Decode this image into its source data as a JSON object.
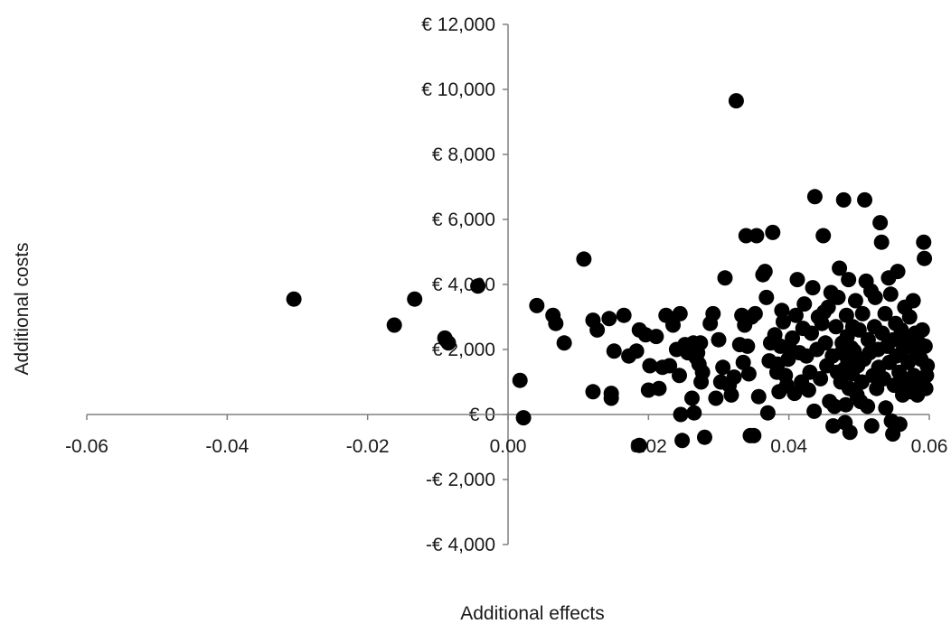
{
  "chart_data": {
    "type": "scatter",
    "title": "",
    "xlabel": "Additional effects",
    "ylabel": "Additional costs",
    "xlim": [
      -0.06,
      0.06
    ],
    "ylim": [
      -4000,
      12000
    ],
    "x_ticks": [
      -0.06,
      -0.04,
      -0.02,
      0.0,
      0.02,
      0.04,
      0.06
    ],
    "x_tick_labels": [
      "-0.06",
      "-0.04",
      "-0.02",
      "0.00",
      "0.02",
      "0.04",
      "0.06"
    ],
    "y_ticks": [
      12000,
      10000,
      8000,
      6000,
      4000,
      2000,
      0,
      -2000,
      -4000
    ],
    "y_tick_labels": [
      "€ 12,000",
      "€ 10,000",
      "€ 8,000",
      "€ 6,000",
      "€ 4,000",
      "€ 2,000",
      "€ 0",
      "-€ 2,000",
      "-€ 4,000"
    ],
    "grid": false,
    "legend": "none",
    "point_color": "#000000",
    "series": [
      {
        "points": [
          [
            -0.0305,
            3550
          ],
          [
            -0.0162,
            2750
          ],
          [
            -0.0133,
            3550
          ],
          [
            -0.009,
            2350
          ],
          [
            -0.0085,
            2200
          ],
          [
            -0.0043,
            3950
          ],
          [
            0.0017,
            1050
          ],
          [
            0.0022,
            -100
          ],
          [
            0.0041,
            3350
          ],
          [
            0.0064,
            3050
          ],
          [
            0.0068,
            2800
          ],
          [
            0.008,
            2200
          ],
          [
            0.0108,
            4780
          ],
          [
            0.0121,
            2900
          ],
          [
            0.0121,
            700
          ],
          [
            0.0127,
            2600
          ],
          [
            0.0144,
            2950
          ],
          [
            0.0147,
            650
          ],
          [
            0.0147,
            500
          ],
          [
            0.0151,
            1950
          ],
          [
            0.0165,
            3050
          ],
          [
            0.0172,
            1800
          ],
          [
            0.0183,
            1950
          ],
          [
            0.0187,
            2600
          ],
          [
            0.0187,
            -950
          ],
          [
            0.0196,
            2450
          ],
          [
            0.02,
            750
          ],
          [
            0.0202,
            1500
          ],
          [
            0.0211,
            2400
          ],
          [
            0.0215,
            800
          ],
          [
            0.022,
            1450
          ],
          [
            0.0225,
            3050
          ],
          [
            0.023,
            1500
          ],
          [
            0.0235,
            2750
          ],
          [
            0.024,
            2000
          ],
          [
            0.0244,
            1200
          ],
          [
            0.0245,
            3100
          ],
          [
            0.0246,
            0
          ],
          [
            0.0248,
            -800
          ],
          [
            0.0252,
            2150
          ],
          [
            0.0256,
            1900
          ],
          [
            0.026,
            2000
          ],
          [
            0.0262,
            500
          ],
          [
            0.0264,
            2200
          ],
          [
            0.0265,
            50
          ],
          [
            0.0268,
            1750
          ],
          [
            0.027,
            1900
          ],
          [
            0.0272,
            1550
          ],
          [
            0.0274,
            2200
          ],
          [
            0.0275,
            1000
          ],
          [
            0.0277,
            1300
          ],
          [
            0.028,
            -700
          ],
          [
            0.0288,
            2800
          ],
          [
            0.0292,
            3100
          ],
          [
            0.0296,
            500
          ],
          [
            0.03,
            2300
          ],
          [
            0.0303,
            1000
          ],
          [
            0.0306,
            1450
          ],
          [
            0.0309,
            4200
          ],
          [
            0.0315,
            900
          ],
          [
            0.0318,
            600
          ],
          [
            0.0322,
            1150
          ],
          [
            0.0325,
            9650
          ],
          [
            0.033,
            2150
          ],
          [
            0.0333,
            3050
          ],
          [
            0.0335,
            1600
          ],
          [
            0.0337,
            2750
          ],
          [
            0.0339,
            5500
          ],
          [
            0.0341,
            2100
          ],
          [
            0.0343,
            1250
          ],
          [
            0.0345,
            -650
          ],
          [
            0.0347,
            3000
          ],
          [
            0.035,
            -650
          ],
          [
            0.0352,
            3100
          ],
          [
            0.0354,
            5500
          ],
          [
            0.0357,
            550
          ],
          [
            0.0363,
            4300
          ],
          [
            0.0366,
            4400
          ],
          [
            0.0368,
            3600
          ],
          [
            0.037,
            50
          ],
          [
            0.0372,
            1650
          ],
          [
            0.0374,
            2200
          ],
          [
            0.0377,
            5600
          ],
          [
            0.038,
            2450
          ],
          [
            0.0383,
            1300
          ],
          [
            0.0384,
            1550
          ],
          [
            0.0386,
            700
          ],
          [
            0.0388,
            2100
          ],
          [
            0.039,
            3200
          ],
          [
            0.0392,
            2850
          ],
          [
            0.0395,
            1200
          ],
          [
            0.0397,
            900
          ],
          [
            0.0399,
            1700
          ],
          [
            0.0402,
            2000
          ],
          [
            0.0405,
            2350
          ],
          [
            0.0408,
            650
          ],
          [
            0.041,
            3050
          ],
          [
            0.0412,
            4150
          ],
          [
            0.0415,
            1900
          ],
          [
            0.0418,
            1000
          ],
          [
            0.042,
            2650
          ],
          [
            0.0422,
            3400
          ],
          [
            0.0425,
            1800
          ],
          [
            0.0428,
            750
          ],
          [
            0.043,
            1300
          ],
          [
            0.0432,
            2500
          ],
          [
            0.0434,
            3900
          ],
          [
            0.0436,
            100
          ],
          [
            0.0437,
            6700
          ],
          [
            0.044,
            2000
          ],
          [
            0.0442,
            3000
          ],
          [
            0.0445,
            1100
          ],
          [
            0.0447,
            2800
          ],
          [
            0.0449,
            5500
          ],
          [
            0.045,
            3150
          ],
          [
            0.0452,
            2200
          ],
          [
            0.0454,
            1500
          ],
          [
            0.0456,
            3300
          ],
          [
            0.0458,
            400
          ],
          [
            0.046,
            3750
          ],
          [
            0.0462,
            1800
          ],
          [
            0.0463,
            -350
          ],
          [
            0.0465,
            250
          ],
          [
            0.0467,
            2700
          ],
          [
            0.0469,
            1300
          ],
          [
            0.047,
            3600
          ],
          [
            0.0472,
            4500
          ],
          [
            0.0474,
            1000
          ],
          [
            0.0475,
            1900
          ],
          [
            0.0476,
            2200
          ],
          [
            0.0478,
            6600
          ],
          [
            0.0479,
            1400
          ],
          [
            0.048,
            -250
          ],
          [
            0.0481,
            300
          ],
          [
            0.0482,
            3050
          ],
          [
            0.0483,
            2400
          ],
          [
            0.0484,
            1650
          ],
          [
            0.0485,
            4150
          ],
          [
            0.0486,
            800
          ],
          [
            0.0487,
            -550
          ],
          [
            0.0489,
            2050
          ],
          [
            0.049,
            1250
          ],
          [
            0.0491,
            2700
          ],
          [
            0.0493,
            1950
          ],
          [
            0.0495,
            3500
          ],
          [
            0.0497,
            600
          ],
          [
            0.0498,
            1500
          ],
          [
            0.05,
            2600
          ],
          [
            0.0502,
            400
          ],
          [
            0.0504,
            1000
          ],
          [
            0.0505,
            3100
          ],
          [
            0.0507,
            1700
          ],
          [
            0.0508,
            6600
          ],
          [
            0.051,
            4100
          ],
          [
            0.0512,
            250
          ],
          [
            0.0513,
            2300
          ],
          [
            0.0515,
            1900
          ],
          [
            0.0517,
            3800
          ],
          [
            0.0518,
            -350
          ],
          [
            0.052,
            1200
          ],
          [
            0.0522,
            2700
          ],
          [
            0.0523,
            3600
          ],
          [
            0.0525,
            800
          ],
          [
            0.0527,
            2000
          ],
          [
            0.0528,
            1450
          ],
          [
            0.053,
            5900
          ],
          [
            0.0532,
            5300
          ],
          [
            0.0533,
            2500
          ],
          [
            0.0535,
            1100
          ],
          [
            0.0537,
            3100
          ],
          [
            0.0538,
            200
          ],
          [
            0.054,
            2100
          ],
          [
            0.0542,
            4200
          ],
          [
            0.0543,
            1600
          ],
          [
            0.0545,
            3700
          ],
          [
            0.0546,
            -200
          ],
          [
            0.0548,
            -600
          ],
          [
            0.0549,
            2300
          ],
          [
            0.055,
            900
          ],
          [
            0.0552,
            2800
          ],
          [
            0.0553,
            1800
          ],
          [
            0.0555,
            4400
          ],
          [
            0.0557,
            1300
          ],
          [
            0.0558,
            -300
          ],
          [
            0.056,
            2600
          ],
          [
            0.0562,
            600
          ],
          [
            0.0563,
            2000
          ],
          [
            0.0565,
            3300
          ],
          [
            0.0567,
            1000
          ],
          [
            0.0568,
            2300
          ],
          [
            0.057,
            1600
          ],
          [
            0.0572,
            3000
          ],
          [
            0.0573,
            700
          ],
          [
            0.0575,
            2100
          ],
          [
            0.0577,
            3500
          ],
          [
            0.0578,
            1200
          ],
          [
            0.058,
            2500
          ],
          [
            0.0582,
            1800
          ],
          [
            0.0583,
            600
          ],
          [
            0.0585,
            2200
          ],
          [
            0.0587,
            1000
          ],
          [
            0.0588,
            1700
          ],
          [
            0.059,
            2600
          ],
          [
            0.0592,
            5300
          ],
          [
            0.0593,
            4800
          ],
          [
            0.0594,
            2100
          ],
          [
            0.0595,
            800
          ],
          [
            0.0596,
            1200
          ],
          [
            0.0597,
            1500
          ]
        ]
      }
    ]
  }
}
